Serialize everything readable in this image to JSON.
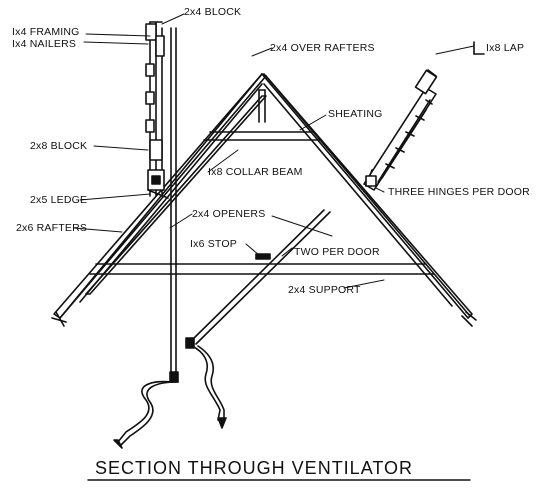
{
  "title": "SECTION THROUGH VENTILATOR",
  "labels": {
    "block_2x4": "2x4 BLOCK",
    "framing_1x4": "Ix4 FRAMING",
    "nailers_1x4": "Ix4 NAILERS",
    "over_rafters_2x4": "2x4 OVER RAFTERS",
    "lap_1x8": "Ix8 LAP",
    "sheating": "SHEATING",
    "block_2x8": "2x8 BLOCK",
    "collar_beam_1x8": "Ix8 COLLAR BEAM",
    "three_hinges": "THREE HINGES PER DOOR",
    "ledge_2x5": "2x5 LEDGE",
    "openers_2x4": "2x4 OPENERS",
    "rafters_2x6": "2x6 RAFTERS",
    "stop_1x6": "Ix6 STOP",
    "two_per_door": "TWO PER DOOR",
    "support_2x4": "2x4 SUPPORT"
  }
}
